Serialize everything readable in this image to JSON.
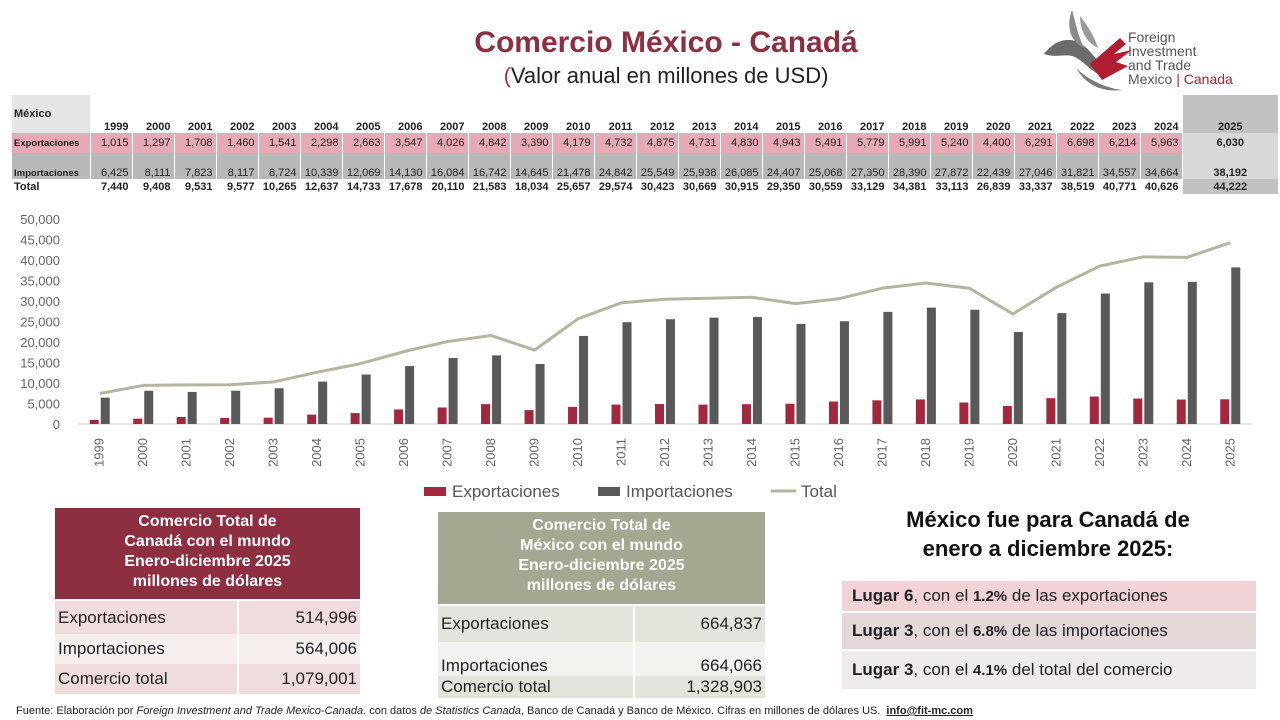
{
  "header": {
    "title": "Comercio México - Canadá",
    "subtitle_paren": "(",
    "subtitle_rest": "Valor anual en millones de USD)"
  },
  "logo": {
    "line1": "Foreign",
    "line2": "Investment",
    "line3": "and Trade",
    "line4_a": "Mexico",
    "line4_sep": " | ",
    "line4_b": "Canada"
  },
  "table": {
    "corner": "México",
    "row_labels": [
      "Exportaciones",
      "Importaciones",
      "Total"
    ],
    "years": [
      "1999",
      "2000",
      "2001",
      "2002",
      "2003",
      "2004",
      "2005",
      "2006",
      "2007",
      "2008",
      "2009",
      "2010",
      "2011",
      "2012",
      "2013",
      "2014",
      "2015",
      "2016",
      "2017",
      "2018",
      "2019",
      "2020",
      "2021",
      "2022",
      "2023",
      "2024",
      "2025"
    ],
    "exportaciones": [
      "1,015",
      "1,297",
      "1,708",
      "1,460",
      "1,541",
      "2,298",
      "2,663",
      "3,547",
      "4,026",
      "4,842",
      "3,390",
      "4,179",
      "4,732",
      "4,875",
      "4,731",
      "4,830",
      "4,943",
      "5,491",
      "5,779",
      "5,991",
      "5,240",
      "4,400",
      "6,291",
      "6,698",
      "6,214",
      "5,963",
      "6,030"
    ],
    "importaciones": [
      "6,425",
      "8,111",
      "7,823",
      "8,117",
      "8,724",
      "10,339",
      "12,069",
      "14,130",
      "16,084",
      "16,742",
      "14,645",
      "21,478",
      "24,842",
      "25,549",
      "25,938",
      "26,085",
      "24,407",
      "25,068",
      "27,350",
      "28,390",
      "27,872",
      "22,439",
      "27,046",
      "31,821",
      "34,557",
      "34,664",
      "38,192"
    ],
    "total": [
      "7,440",
      "9,408",
      "9,531",
      "9,577",
      "10,265",
      "12,637",
      "14,733",
      "17,678",
      "20,110",
      "21,583",
      "18,034",
      "25,657",
      "29,574",
      "30,423",
      "30,669",
      "30,915",
      "29,350",
      "30,559",
      "33,129",
      "34,381",
      "33,113",
      "26,839",
      "33,337",
      "38,519",
      "40,771",
      "40,626",
      "44,222"
    ]
  },
  "chart_data": {
    "type": "bar",
    "categories": [
      "1999",
      "2000",
      "2001",
      "2002",
      "2003",
      "2004",
      "2005",
      "2006",
      "2007",
      "2008",
      "2009",
      "2010",
      "2011",
      "2012",
      "2013",
      "2014",
      "2015",
      "2016",
      "2017",
      "2018",
      "2019",
      "2020",
      "2021",
      "2022",
      "2023",
      "2024",
      "2025"
    ],
    "series": [
      {
        "name": "Exportaciones",
        "type": "bar",
        "color": "#a3283e",
        "values": [
          1015,
          1297,
          1708,
          1460,
          1541,
          2298,
          2663,
          3547,
          4026,
          4842,
          3390,
          4179,
          4732,
          4875,
          4731,
          4830,
          4943,
          5491,
          5779,
          5991,
          5240,
          4400,
          6291,
          6698,
          6214,
          5963,
          6030
        ]
      },
      {
        "name": "Importaciones",
        "type": "bar",
        "color": "#595959",
        "values": [
          6425,
          8111,
          7823,
          8117,
          8724,
          10339,
          12069,
          14130,
          16084,
          16742,
          14645,
          21478,
          24842,
          25549,
          25938,
          26085,
          24407,
          25068,
          27350,
          28390,
          27872,
          22439,
          27046,
          31821,
          34557,
          34664,
          38192
        ]
      },
      {
        "name": "Total",
        "type": "line",
        "color": "#b4b4a0",
        "values": [
          7440,
          9408,
          9531,
          9577,
          10265,
          12637,
          14733,
          17678,
          20110,
          21583,
          18034,
          25657,
          29574,
          30423,
          30669,
          30915,
          29350,
          30559,
          33129,
          34381,
          33113,
          26839,
          33337,
          38519,
          40771,
          40626,
          44222
        ]
      }
    ],
    "ylim": [
      0,
      50000
    ],
    "yticks": [
      0,
      5000,
      10000,
      15000,
      20000,
      25000,
      30000,
      35000,
      40000,
      45000,
      50000
    ],
    "ytick_labels": [
      "0",
      "5,000",
      "10,000",
      "15,000",
      "20,000",
      "25,000",
      "30,000",
      "35,000",
      "40,000",
      "45,000",
      "50,000"
    ],
    "grid": false,
    "legend": "bottom",
    "title": "",
    "xlabel": "",
    "ylabel": ""
  },
  "canada_box": {
    "head": [
      "Comercio Total de",
      "Canadá con el mundo",
      "Enero-diciembre 2025",
      "millones de dólares"
    ],
    "rows": [
      {
        "label": "Exportaciones",
        "value": "514,996"
      },
      {
        "label": "Importaciones",
        "value": "564,006"
      },
      {
        "label": "Comercio total",
        "value": "1,079,001"
      }
    ]
  },
  "mexico_box": {
    "head": [
      "Comercio Total de",
      "México con el mundo",
      "Enero-diciembre 2025",
      "millones de dólares"
    ],
    "rows": [
      {
        "label": "Exportaciones",
        "value": "664,837"
      },
      {
        "label": "Importaciones",
        "value": "664,066"
      },
      {
        "label": "Comercio total",
        "value": "1,328,903"
      }
    ]
  },
  "ranking": {
    "title_1": "México fue para Canadá de",
    "title_2": "enero a diciembre 2025:",
    "items": [
      {
        "place": "Lugar 6",
        "mid": ", con el ",
        "pct": "1.2%",
        "rest": " de las exportaciones"
      },
      {
        "place": "Lugar 3",
        "mid": ", con el ",
        "pct": "6.8%",
        "rest": " de las importaciones"
      },
      {
        "place": "Lugar 3",
        "mid": ", con el ",
        "pct": "4.1%",
        "rest": " del total del comercio"
      }
    ]
  },
  "footer": {
    "a": "Fuente: Elaboración por ",
    "b": "Foreign Investment and Trade Mexico-Canada",
    "c": ". con datos ",
    "d": "de Statistics Canada",
    "e": ", Banco de Canadá y Banco de México. Cifras en millones de dólares US.",
    "email": "info@fit-mc.com"
  },
  "colors": {
    "brand": "#8e2e41",
    "export": "#a3283e",
    "import": "#595959",
    "total": "#b4b4a0",
    "mexico_head": "#a3a891"
  }
}
